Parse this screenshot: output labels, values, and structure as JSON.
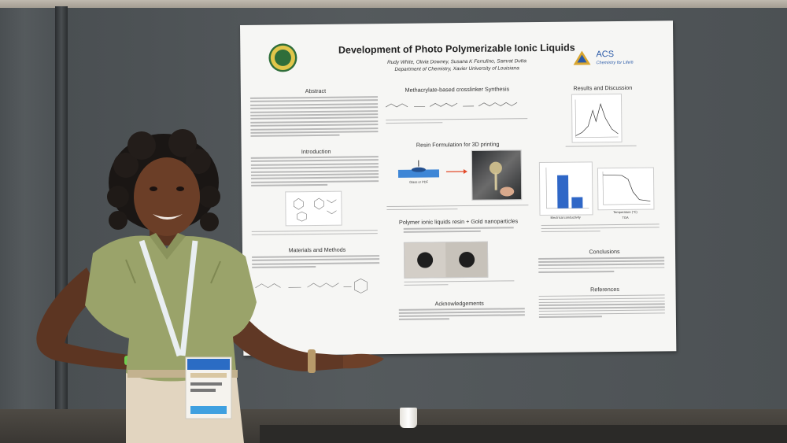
{
  "poster": {
    "title": "Development of Photo Polymerizable Ionic Liquids",
    "authors": "Rudy White, Olivia Downey, Susana K Ferrufino, Samrat Dutta",
    "affiliation": "Department of Chemistry, Xavier University of Louisiana",
    "acs_brand": "ACS",
    "acs_tagline": "Chemistry for Life®",
    "sections": {
      "abstract": "Abstract",
      "introduction": "Introduction",
      "materials": "Materials and Methods",
      "crosslinker": "Methacrylate-based crosslinker Synthesis",
      "resin": "Resin Formulation for 3D printing",
      "gold": "Polymer ionic liquids resin + Gold nanoparticles",
      "acknowledgements": "Acknowledgements",
      "results": "Results and Discussion",
      "conclusions": "Conclusions",
      "references": "References"
    },
    "labels": {
      "glass_pdf": "Glass or PDF",
      "electrical": "Electrical conductivity",
      "tga": "TGA",
      "temperature": "Temperature (°C)"
    }
  },
  "colors": {
    "poster_bg": "#f6f6f4",
    "board": "#53585b",
    "shirt": "#9aa36a",
    "bar_blue": "#2f67c7"
  }
}
